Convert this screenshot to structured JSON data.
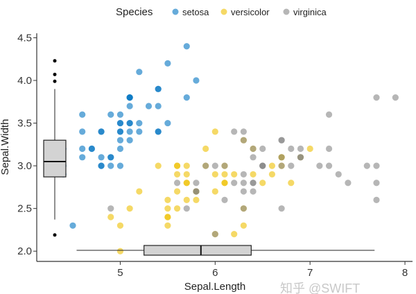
{
  "chart_data": {
    "type": "scatter",
    "title": "",
    "xlabel": "Sepal.Length",
    "ylabel": "Sepal.Width",
    "xlim": [
      4.12,
      8.08
    ],
    "ylim": [
      1.88,
      4.52
    ],
    "x_ticks": [
      "5",
      "6",
      "7",
      "8"
    ],
    "y_ticks": [
      "2.0",
      "2.5",
      "3.0",
      "3.5",
      "4.0",
      "4.5"
    ],
    "grid": false,
    "legend": {
      "title": "Species",
      "placement": "top"
    },
    "series": [
      {
        "name": "setosa",
        "color": "#0073C2",
        "x": [
          5.1,
          4.9,
          4.7,
          4.6,
          5.0,
          5.4,
          4.6,
          5.0,
          4.4,
          4.9,
          5.4,
          4.8,
          4.8,
          4.3,
          5.8,
          5.7,
          5.4,
          5.1,
          5.7,
          5.1,
          5.4,
          5.1,
          4.6,
          5.1,
          4.8,
          5.0,
          5.0,
          5.2,
          5.2,
          4.7,
          4.8,
          5.4,
          5.2,
          5.5,
          4.9,
          5.0,
          5.5,
          4.9,
          4.4,
          5.1,
          5.0,
          4.5,
          4.4,
          5.0,
          5.1,
          4.8,
          5.1,
          4.6,
          5.3,
          5.0
        ],
        "y": [
          3.5,
          3.0,
          3.2,
          3.1,
          3.6,
          3.9,
          3.4,
          3.4,
          2.9,
          3.1,
          3.7,
          3.4,
          3.0,
          3.0,
          4.0,
          4.4,
          3.9,
          3.5,
          3.8,
          3.8,
          3.4,
          3.7,
          3.6,
          3.3,
          3.4,
          3.0,
          3.4,
          3.5,
          3.4,
          3.2,
          3.1,
          3.4,
          4.1,
          4.2,
          3.1,
          3.2,
          3.5,
          3.6,
          3.0,
          3.4,
          3.5,
          2.3,
          3.2,
          3.5,
          3.8,
          3.0,
          3.8,
          3.2,
          3.7,
          3.3
        ]
      },
      {
        "name": "versicolor",
        "color": "#EFC000",
        "x": [
          7.0,
          6.4,
          6.9,
          5.5,
          6.5,
          5.7,
          6.3,
          4.9,
          6.6,
          5.2,
          5.0,
          5.9,
          6.0,
          6.1,
          5.6,
          6.7,
          5.6,
          5.8,
          6.2,
          5.6,
          5.9,
          6.1,
          6.3,
          6.1,
          6.4,
          6.6,
          6.8,
          6.7,
          6.0,
          5.7,
          5.5,
          5.5,
          5.8,
          6.0,
          5.4,
          6.0,
          6.7,
          6.3,
          5.6,
          5.5,
          5.5,
          6.1,
          5.8,
          5.0,
          5.6,
          5.7,
          5.7,
          6.2,
          5.1,
          5.7
        ],
        "y": [
          3.2,
          3.2,
          3.1,
          2.3,
          2.8,
          2.8,
          3.3,
          2.4,
          2.9,
          2.7,
          2.0,
          3.0,
          2.2,
          2.9,
          2.9,
          3.1,
          3.0,
          2.7,
          2.2,
          2.5,
          3.2,
          2.8,
          2.5,
          2.8,
          2.9,
          3.0,
          2.8,
          3.0,
          2.9,
          2.6,
          2.4,
          2.4,
          2.7,
          2.7,
          3.0,
          3.4,
          3.1,
          2.3,
          3.0,
          2.5,
          2.6,
          3.0,
          2.6,
          2.3,
          2.7,
          3.0,
          2.9,
          2.9,
          2.5,
          2.8
        ]
      },
      {
        "name": "virginica",
        "color": "#868686",
        "x": [
          6.3,
          5.8,
          7.1,
          6.3,
          6.5,
          7.6,
          4.9,
          7.3,
          6.7,
          7.2,
          6.5,
          6.4,
          6.8,
          5.7,
          5.8,
          6.4,
          6.5,
          7.7,
          7.7,
          6.0,
          6.9,
          5.6,
          7.7,
          6.3,
          6.7,
          7.2,
          6.2,
          6.1,
          6.4,
          7.2,
          7.4,
          7.9,
          6.4,
          6.3,
          6.1,
          7.7,
          6.3,
          6.4,
          6.0,
          6.9,
          6.7,
          6.9,
          5.8,
          6.8,
          6.7,
          6.7,
          6.3,
          6.5,
          6.2,
          5.9
        ],
        "y": [
          3.3,
          2.7,
          3.0,
          2.9,
          3.0,
          3.0,
          2.5,
          2.9,
          2.5,
          3.6,
          3.2,
          2.7,
          3.0,
          2.5,
          2.8,
          3.2,
          3.0,
          3.8,
          2.6,
          2.2,
          3.2,
          2.8,
          2.8,
          2.7,
          3.3,
          3.2,
          2.8,
          3.0,
          2.8,
          3.0,
          2.8,
          3.8,
          2.8,
          2.8,
          2.6,
          3.0,
          3.4,
          3.1,
          3.0,
          3.1,
          3.1,
          3.1,
          2.7,
          3.2,
          3.3,
          3.0,
          2.5,
          3.0,
          3.4,
          3.0
        ]
      }
    ],
    "marginal_boxplots": {
      "y": {
        "whisker_low": 2.37,
        "q1": 2.87,
        "median": 3.05,
        "q3": 3.3,
        "whisker_high": 3.9,
        "outliers": [
          4.23,
          4.07,
          3.99,
          2.19
        ]
      },
      "x": {
        "whisker_low": 4.54,
        "q1": 5.25,
        "median": 5.85,
        "q3": 6.38,
        "whisker_high": 7.68,
        "outliers": []
      }
    }
  },
  "watermark": "知乎 @SWIFT"
}
